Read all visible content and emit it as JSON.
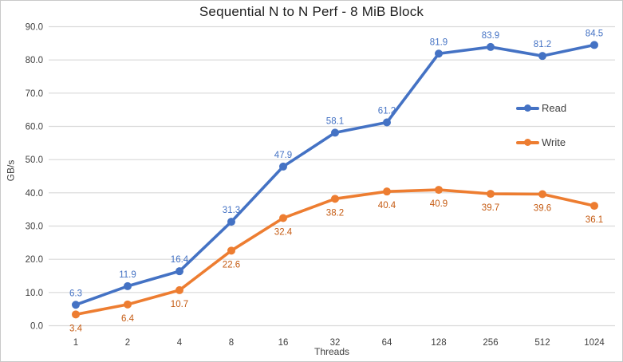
{
  "chart_data": {
    "type": "line",
    "title": "Sequential N to N Perf - 8 MiB Block",
    "xlabel": "Threads",
    "ylabel": "GB/s",
    "categories": [
      "1",
      "2",
      "4",
      "8",
      "16",
      "32",
      "64",
      "128",
      "256",
      "512",
      "1024"
    ],
    "series": [
      {
        "name": "Read",
        "color": "#4472C4",
        "label_color": "#4472C4",
        "label_position": "above",
        "values": [
          6.3,
          11.9,
          16.4,
          31.3,
          47.9,
          58.1,
          61.2,
          81.9,
          83.9,
          81.2,
          84.5
        ]
      },
      {
        "name": "Write",
        "color": "#ED7D31",
        "label_color": "#C55A11",
        "label_position": "below",
        "values": [
          3.4,
          6.4,
          10.7,
          22.6,
          32.4,
          38.2,
          40.4,
          40.9,
          39.7,
          39.6,
          36.1
        ]
      }
    ],
    "ylim": [
      0,
      90
    ],
    "ytick_step": 10,
    "ytick_decimals": 1,
    "grid": "horizontal",
    "legend_position": "inside-right",
    "data_labels_decimals": 1
  },
  "colors": {
    "gridline": "#D9D9D9",
    "axis_text": "#404040",
    "title_text": "#1F1F1F",
    "background": "#FFFFFF",
    "border": "#C9C9C9"
  }
}
